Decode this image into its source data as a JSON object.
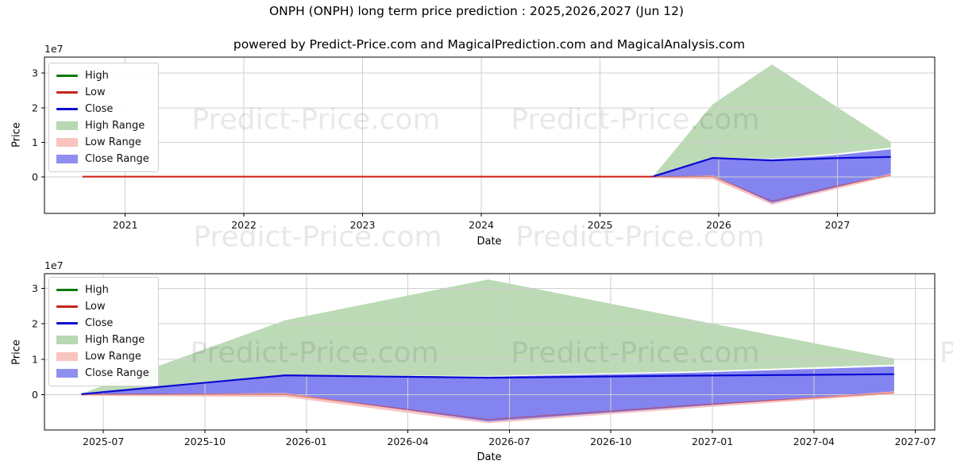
{
  "title": "ONPH (ONPH) long term price prediction : 2025,2026,2027 (Jun 12)",
  "subtitle": "powered by Predict-Price.com and MagicalPrediction.com and MagicalAnalysis.com",
  "watermark": {
    "text": "Predict-Price.com"
  },
  "legend": {
    "items": [
      {
        "label": "High",
        "swatch": "line",
        "color": "#0a7a0a"
      },
      {
        "label": "Low",
        "swatch": "line",
        "color": "#c4261b"
      },
      {
        "label": "Close",
        "swatch": "line",
        "color": "#0d0dcf"
      },
      {
        "label": "High Range",
        "swatch": "fill",
        "color": "#b7d8b2"
      },
      {
        "label": "Low Range",
        "swatch": "fill",
        "color": "#f9c3c0"
      },
      {
        "label": "Close Range",
        "swatch": "fill",
        "color": "#8f8fef"
      }
    ]
  },
  "colors": {
    "low_line": "#d02418",
    "close_line": "#0a0ad2",
    "high_range": "#bcdab6",
    "low_range": "#f8c5c2",
    "close_range": "#8484f0",
    "grid": "#cfcfcf",
    "spine": "#000000"
  },
  "chart_data": [
    {
      "type": "area",
      "name": "full-history-prediction",
      "xlabel": "Date",
      "ylabel": "Price",
      "y_offset_label": "1e7",
      "value_unit": "1e7",
      "xlim": [
        2020.32,
        2027.82
      ],
      "ylim": [
        -1.05,
        3.46
      ],
      "x_ticks": [
        {
          "v": 2021,
          "label": "2021"
        },
        {
          "v": 2022,
          "label": "2022"
        },
        {
          "v": 2023,
          "label": "2023"
        },
        {
          "v": 2024,
          "label": "2024"
        },
        {
          "v": 2025,
          "label": "2025"
        },
        {
          "v": 2026,
          "label": "2026"
        },
        {
          "v": 2027,
          "label": "2027"
        }
      ],
      "y_ticks": [
        {
          "v": 0,
          "label": "0"
        },
        {
          "v": 1,
          "label": "1"
        },
        {
          "v": 2,
          "label": "2"
        },
        {
          "v": 3,
          "label": "3"
        }
      ],
      "historical_low": {
        "x": [
          2020.64,
          2025.45
        ],
        "values": [
          0.01,
          0.01
        ]
      },
      "series": {
        "x": [
          2025.45,
          2025.95,
          2026.45,
          2026.95,
          2027.45
        ],
        "dates": [
          "2025-06-12",
          "2025-12-12",
          "2026-06-12",
          "2026-12-12",
          "2027-06-12"
        ],
        "high": [
          0.02,
          0.56,
          0.5,
          0.56,
          0.6
        ],
        "low": [
          0.01,
          0.02,
          -0.7,
          -0.3,
          0.06
        ],
        "close": [
          0.02,
          0.55,
          0.48,
          0.54,
          0.58
        ],
        "high_range_upper": [
          0.03,
          2.1,
          3.25,
          2.12,
          1.02
        ],
        "high_range_lower": [
          0.02,
          0.57,
          0.53,
          0.66,
          0.85
        ],
        "low_range_upper": [
          0.03,
          0.05,
          -0.66,
          -0.26,
          0.12
        ],
        "low_range_lower": [
          -0.03,
          -0.06,
          -0.8,
          -0.38,
          0.02
        ],
        "close_range_upper": [
          0.02,
          0.57,
          0.51,
          0.62,
          0.8
        ],
        "close_range_lower": [
          0.0,
          0.05,
          -0.75,
          -0.33,
          0.1
        ]
      }
    },
    {
      "type": "area",
      "name": "prediction-window",
      "xlabel": "Date",
      "ylabel": "Price",
      "y_offset_label": "1e7",
      "value_unit": "1e7",
      "xlim": [
        -1.74,
        24.57
      ],
      "ylim": [
        -0.99,
        3.41
      ],
      "x_ticks": [
        {
          "v": 0,
          "label": "2025-07"
        },
        {
          "v": 3,
          "label": "2025-10"
        },
        {
          "v": 6,
          "label": "2026-01"
        },
        {
          "v": 9,
          "label": "2026-04"
        },
        {
          "v": 12,
          "label": "2026-07"
        },
        {
          "v": 15,
          "label": "2026-10"
        },
        {
          "v": 18,
          "label": "2027-01"
        },
        {
          "v": 21,
          "label": "2027-04"
        },
        {
          "v": 24,
          "label": "2027-07"
        }
      ],
      "y_ticks": [
        {
          "v": 0,
          "label": "0"
        },
        {
          "v": 1,
          "label": "1"
        },
        {
          "v": 2,
          "label": "2"
        },
        {
          "v": 3,
          "label": "3"
        }
      ],
      "series": {
        "x": [
          -0.65,
          5.37,
          11.37,
          17.37,
          23.37
        ],
        "dates": [
          "2025-06-12",
          "2025-12-12",
          "2026-06-12",
          "2026-12-12",
          "2027-06-12"
        ],
        "high": [
          0.02,
          0.56,
          0.5,
          0.56,
          0.6
        ],
        "low": [
          0.01,
          0.02,
          -0.7,
          -0.3,
          0.06
        ],
        "close": [
          0.02,
          0.55,
          0.48,
          0.54,
          0.58
        ],
        "high_range_upper": [
          0.03,
          2.1,
          3.25,
          2.12,
          1.02
        ],
        "high_range_lower": [
          0.02,
          0.57,
          0.53,
          0.66,
          0.85
        ],
        "low_range_upper": [
          0.03,
          0.05,
          -0.66,
          -0.26,
          0.12
        ],
        "low_range_lower": [
          -0.03,
          -0.06,
          -0.8,
          -0.38,
          0.02
        ],
        "close_range_upper": [
          0.02,
          0.57,
          0.51,
          0.62,
          0.8
        ],
        "close_range_lower": [
          0.0,
          0.05,
          -0.75,
          -0.33,
          0.1
        ]
      }
    }
  ]
}
